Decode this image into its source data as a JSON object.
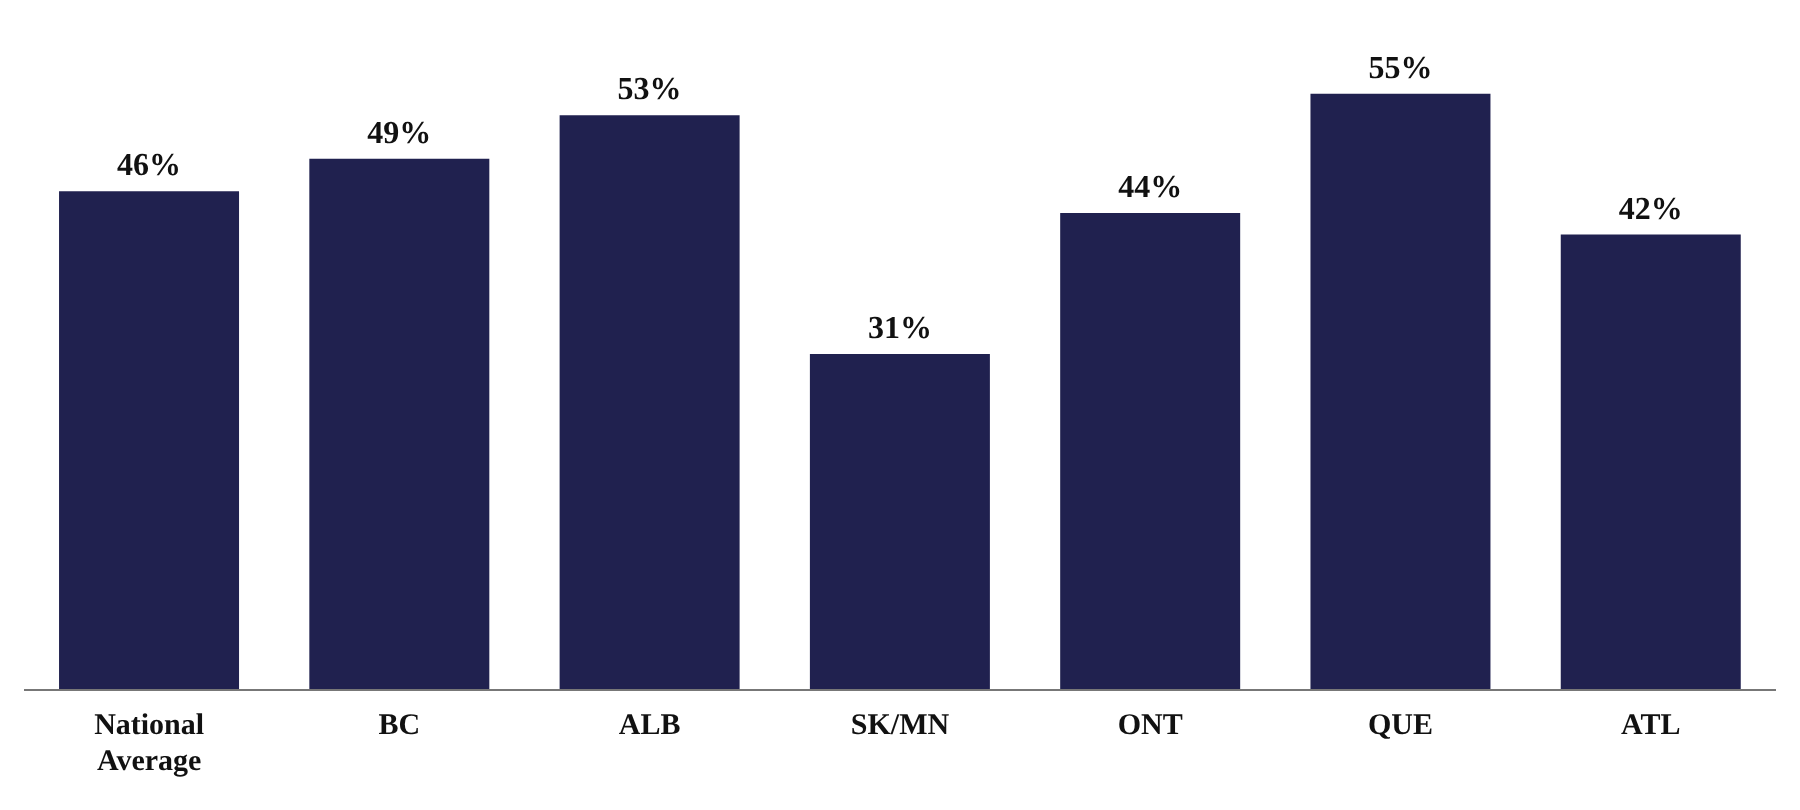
{
  "chart_data": {
    "type": "bar",
    "categories": [
      "National Average",
      "BC",
      "ALB",
      "SK/MN",
      "ONT",
      "QUE",
      "ATL"
    ],
    "values": [
      46,
      49,
      53,
      31,
      44,
      55,
      42
    ],
    "value_labels": [
      "46%",
      "49%",
      "53%",
      "31%",
      "44%",
      "55%",
      "42%"
    ],
    "color": "#20214f",
    "grid": false,
    "legend": false
  }
}
